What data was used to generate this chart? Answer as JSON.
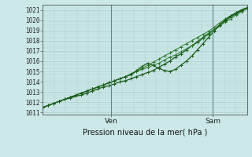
{
  "title": "Pression niveau de la mer( hPa )",
  "ylabel_ticks": [
    1011,
    1012,
    1013,
    1014,
    1015,
    1016,
    1017,
    1018,
    1019,
    1020,
    1021
  ],
  "ylim": [
    1010.8,
    1021.5
  ],
  "xlim": [
    0,
    72
  ],
  "xtick_positions": [
    24,
    60
  ],
  "xtick_labels": [
    "Ven",
    "Sam"
  ],
  "background_color": "#cce8e8",
  "grid_color": "#aacccc",
  "line_color_dark": "#1a5c1a",
  "line_color_mid": "#2d7a2d",
  "vline_color": "#5a8a8a",
  "marker": "+",
  "figsize": [
    3.2,
    2.0
  ],
  "dpi": 100,
  "series": [
    [
      1011.5,
      1011.7,
      1011.9,
      1012.1,
      1012.3,
      1012.4,
      1012.6,
      1012.7,
      1012.9,
      1013.1,
      1013.3,
      1013.5,
      1013.6,
      1013.8,
      1014.0,
      1014.1,
      1014.3,
      1014.5,
      1014.7,
      1014.9,
      1015.1,
      1015.4,
      1015.7,
      1016.0,
      1016.4,
      1016.7,
      1017.1,
      1017.5,
      1017.9,
      1018.3,
      1018.7,
      1019.1,
      1019.5,
      1019.9,
      1020.3,
      1020.6,
      1020.9,
      1021.2
    ],
    [
      1011.5,
      1011.7,
      1011.9,
      1012.1,
      1012.3,
      1012.5,
      1012.7,
      1012.9,
      1013.1,
      1013.3,
      1013.5,
      1013.7,
      1013.9,
      1014.1,
      1014.3,
      1014.5,
      1014.8,
      1015.0,
      1015.3,
      1015.6,
      1015.9,
      1016.2,
      1016.5,
      1016.8,
      1017.1,
      1017.4,
      1017.7,
      1018.0,
      1018.3,
      1018.6,
      1018.9,
      1019.3,
      1019.7,
      1020.1,
      1020.4,
      1020.7,
      1021.0,
      1021.2
    ],
    [
      1011.5,
      1011.7,
      1011.9,
      1012.1,
      1012.3,
      1012.5,
      1012.7,
      1012.9,
      1013.1,
      1013.3,
      1013.5,
      1013.7,
      1013.9,
      1014.1,
      1014.3,
      1014.5,
      1014.7,
      1015.0,
      1015.2,
      1015.4,
      1015.6,
      1015.8,
      1016.1,
      1016.4,
      1016.6,
      1016.9,
      1017.2,
      1017.5,
      1017.8,
      1018.2,
      1018.6,
      1019.0,
      1019.4,
      1019.8,
      1020.1,
      1020.5,
      1020.8,
      1021.1
    ],
    [
      1011.5,
      1011.7,
      1011.9,
      1012.1,
      1012.3,
      1012.5,
      1012.7,
      1012.9,
      1013.1,
      1013.3,
      1013.5,
      1013.7,
      1013.9,
      1014.1,
      1014.3,
      1014.5,
      1014.7,
      1015.1,
      1015.5,
      1015.8,
      1015.6,
      1015.3,
      1015.1,
      1015.0,
      1015.2,
      1015.6,
      1016.0,
      1016.5,
      1017.1,
      1017.7,
      1018.3,
      1018.9,
      1019.5,
      1020.0,
      1020.4,
      1020.7,
      1021.0,
      1021.2
    ]
  ]
}
